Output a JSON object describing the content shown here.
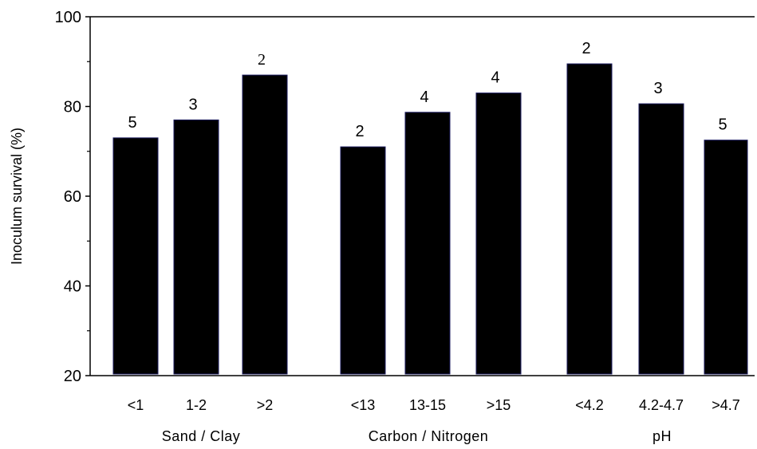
{
  "chart_data": {
    "type": "bar",
    "ylabel": "Inoculum survival (%)",
    "ylim": [
      20,
      100
    ],
    "yticks": [
      20,
      40,
      60,
      80,
      100
    ],
    "grid": false,
    "groups": [
      {
        "name": "Sand / Clay",
        "bars": [
          {
            "category": "<1",
            "value": 73,
            "n": "5"
          },
          {
            "category": "1-2",
            "value": 77,
            "n": "3"
          },
          {
            "category": ">2",
            "value": 87,
            "n": "2"
          }
        ]
      },
      {
        "name": "Carbon / Nitrogen",
        "bars": [
          {
            "category": "<13",
            "value": 71,
            "n": "2"
          },
          {
            "category": "13-15",
            "value": 78.7,
            "n": "4"
          },
          {
            "category": ">15",
            "value": 83,
            "n": "4"
          }
        ]
      },
      {
        "name": "pH",
        "bars": [
          {
            "category": "<4.2",
            "value": 89.5,
            "n": "2"
          },
          {
            "category": "4.2-4.7",
            "value": 80.6,
            "n": "3"
          },
          {
            "category": ">4.7",
            "value": 72.5,
            "n": "5"
          }
        ]
      }
    ],
    "colors": {
      "bar": "#000000",
      "bar_edge": "#1a1a5e",
      "axis": "#000000"
    }
  }
}
